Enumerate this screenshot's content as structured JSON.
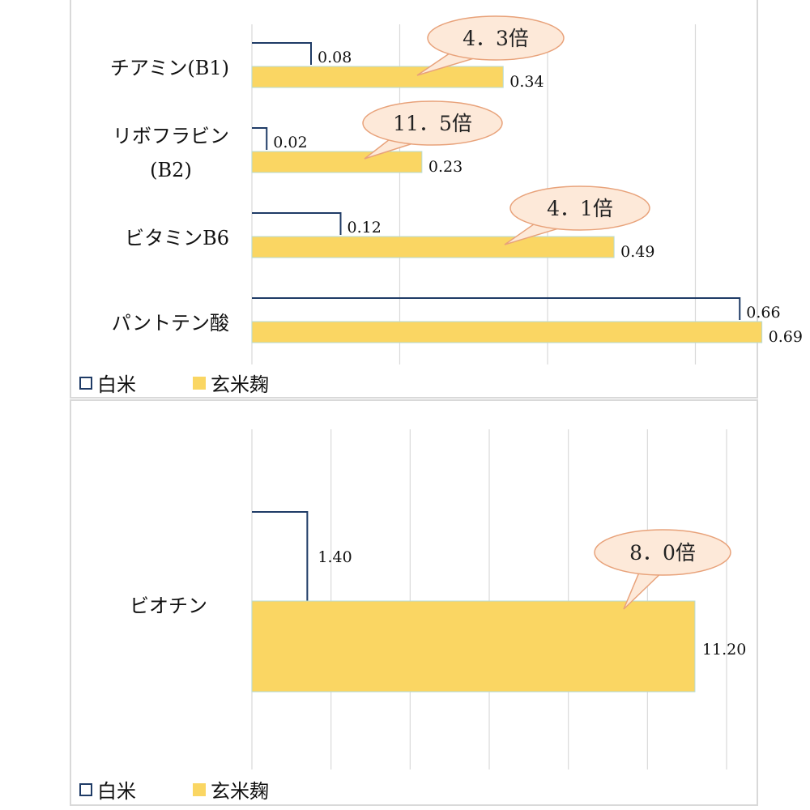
{
  "chart_data": [
    {
      "type": "bar",
      "orientation": "horizontal",
      "categories": [
        "チアミン(B1)",
        "リボフラビン(B2)",
        "ビタミンB6",
        "パントテン酸"
      ],
      "category_lines": [
        [
          "チアミン(B1)"
        ],
        [
          "リボフラビン",
          "(B2)"
        ],
        [
          "ビタミンB6"
        ],
        [
          "パントテン酸"
        ]
      ],
      "series": [
        {
          "name": "白米",
          "values": [
            0.08,
            0.02,
            0.12,
            0.66
          ],
          "labels": [
            "0.08",
            "0.02",
            "0.12",
            "0.66"
          ]
        },
        {
          "name": "玄米麹",
          "values": [
            0.34,
            0.23,
            0.49,
            0.69
          ],
          "labels": [
            "0.34",
            "0.23",
            "0.49",
            "0.69"
          ]
        }
      ],
      "xlim": [
        0,
        0.8
      ],
      "grid": true,
      "legend": "bottom-left",
      "callouts": [
        {
          "category": "チアミン(B1)",
          "text": "4．3倍"
        },
        {
          "category": "リボフラビン(B2)",
          "text": "11．5倍"
        },
        {
          "category": "ビタミンB6",
          "text": "4．1倍"
        }
      ]
    },
    {
      "type": "bar",
      "orientation": "horizontal",
      "categories": [
        "ビオチン"
      ],
      "category_lines": [
        [
          "ビオチン"
        ]
      ],
      "series": [
        {
          "name": "白米",
          "values": [
            1.4
          ],
          "labels": [
            "1.40"
          ]
        },
        {
          "name": "玄米麹",
          "values": [
            11.2
          ],
          "labels": [
            "11.20"
          ]
        }
      ],
      "xlim": [
        0,
        12
      ],
      "grid": true,
      "legend": "bottom-left",
      "callouts": [
        {
          "category": "ビオチン",
          "text": "8．0倍"
        }
      ]
    }
  ],
  "colors": {
    "white_rice_border": "#1f3b66",
    "white_rice_fill": "#ffffff",
    "koji_fill": "#fad663",
    "koji_border": "#b6dbd6",
    "callout_fill": "#fde9d9",
    "callout_border": "#e8a27a",
    "grid": "#d9d9d9"
  }
}
